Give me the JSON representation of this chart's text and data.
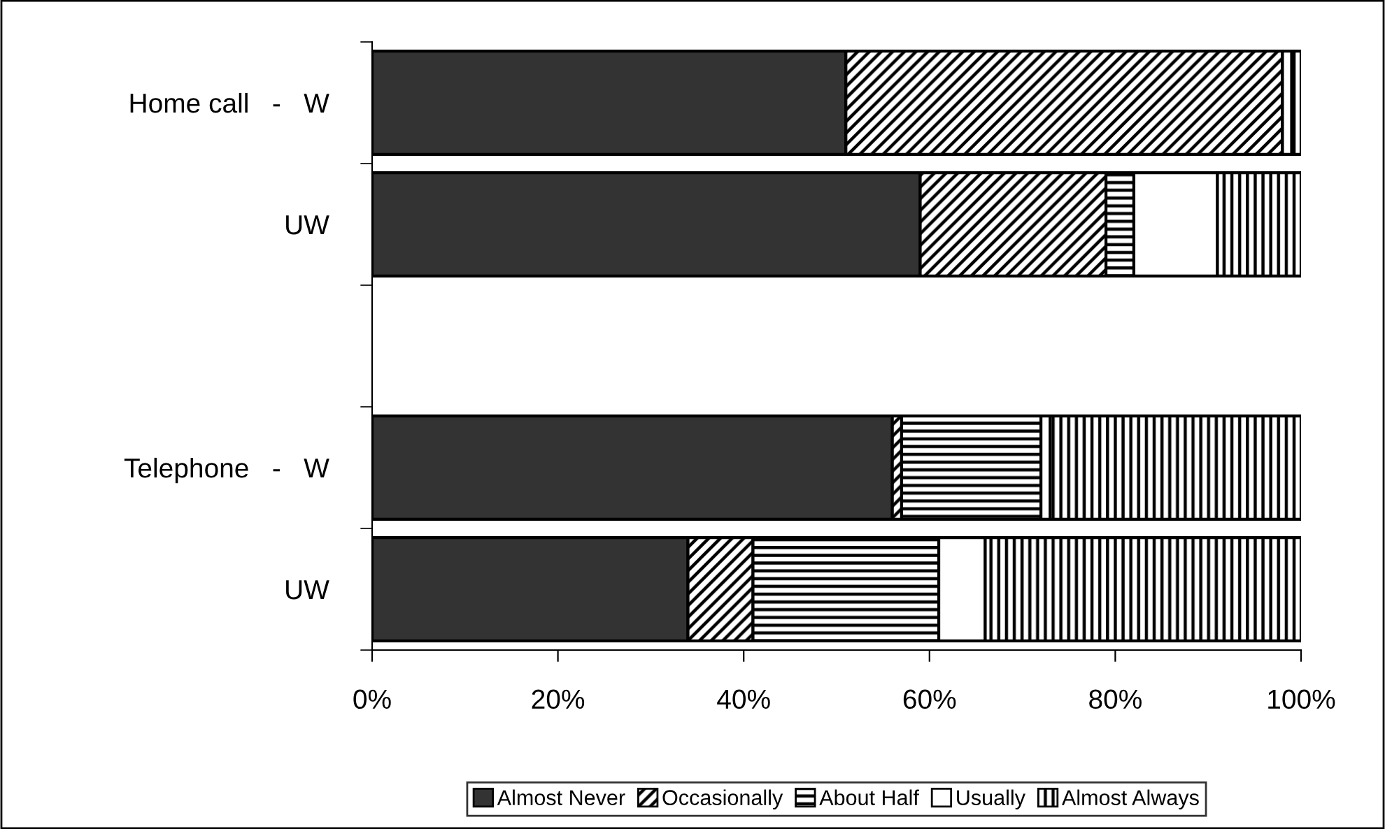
{
  "chart_data": {
    "type": "bar",
    "orientation": "horizontal",
    "stacked": true,
    "categories": [
      "Home call   -   W",
      "UW",
      null,
      "Telephone   -   W",
      "UW"
    ],
    "series": [
      {
        "name": "Almost Never",
        "color": "#333333",
        "values": [
          51,
          59,
          null,
          56,
          34
        ]
      },
      {
        "name": "Occasionally",
        "color": "#000000",
        "values": [
          47,
          20,
          null,
          1,
          7
        ]
      },
      {
        "name": "About Half",
        "color": "#000000",
        "values": [
          0,
          3,
          null,
          15,
          20
        ]
      },
      {
        "name": "Usually",
        "color": "#ffffff",
        "values": [
          1,
          9,
          null,
          1,
          5
        ]
      },
      {
        "name": "Almost Always",
        "color": "#000000",
        "values": [
          1,
          9,
          null,
          27,
          34
        ]
      }
    ],
    "xlim": [
      0,
      100
    ],
    "xticks": [
      {
        "value": 0,
        "label": "0%"
      },
      {
        "value": 20,
        "label": "20%"
      },
      {
        "value": 40,
        "label": "40%"
      },
      {
        "value": 60,
        "label": "60%"
      },
      {
        "value": 80,
        "label": "80%"
      },
      {
        "value": 100,
        "label": "100%"
      }
    ],
    "grid": false,
    "legend": "bottom"
  }
}
